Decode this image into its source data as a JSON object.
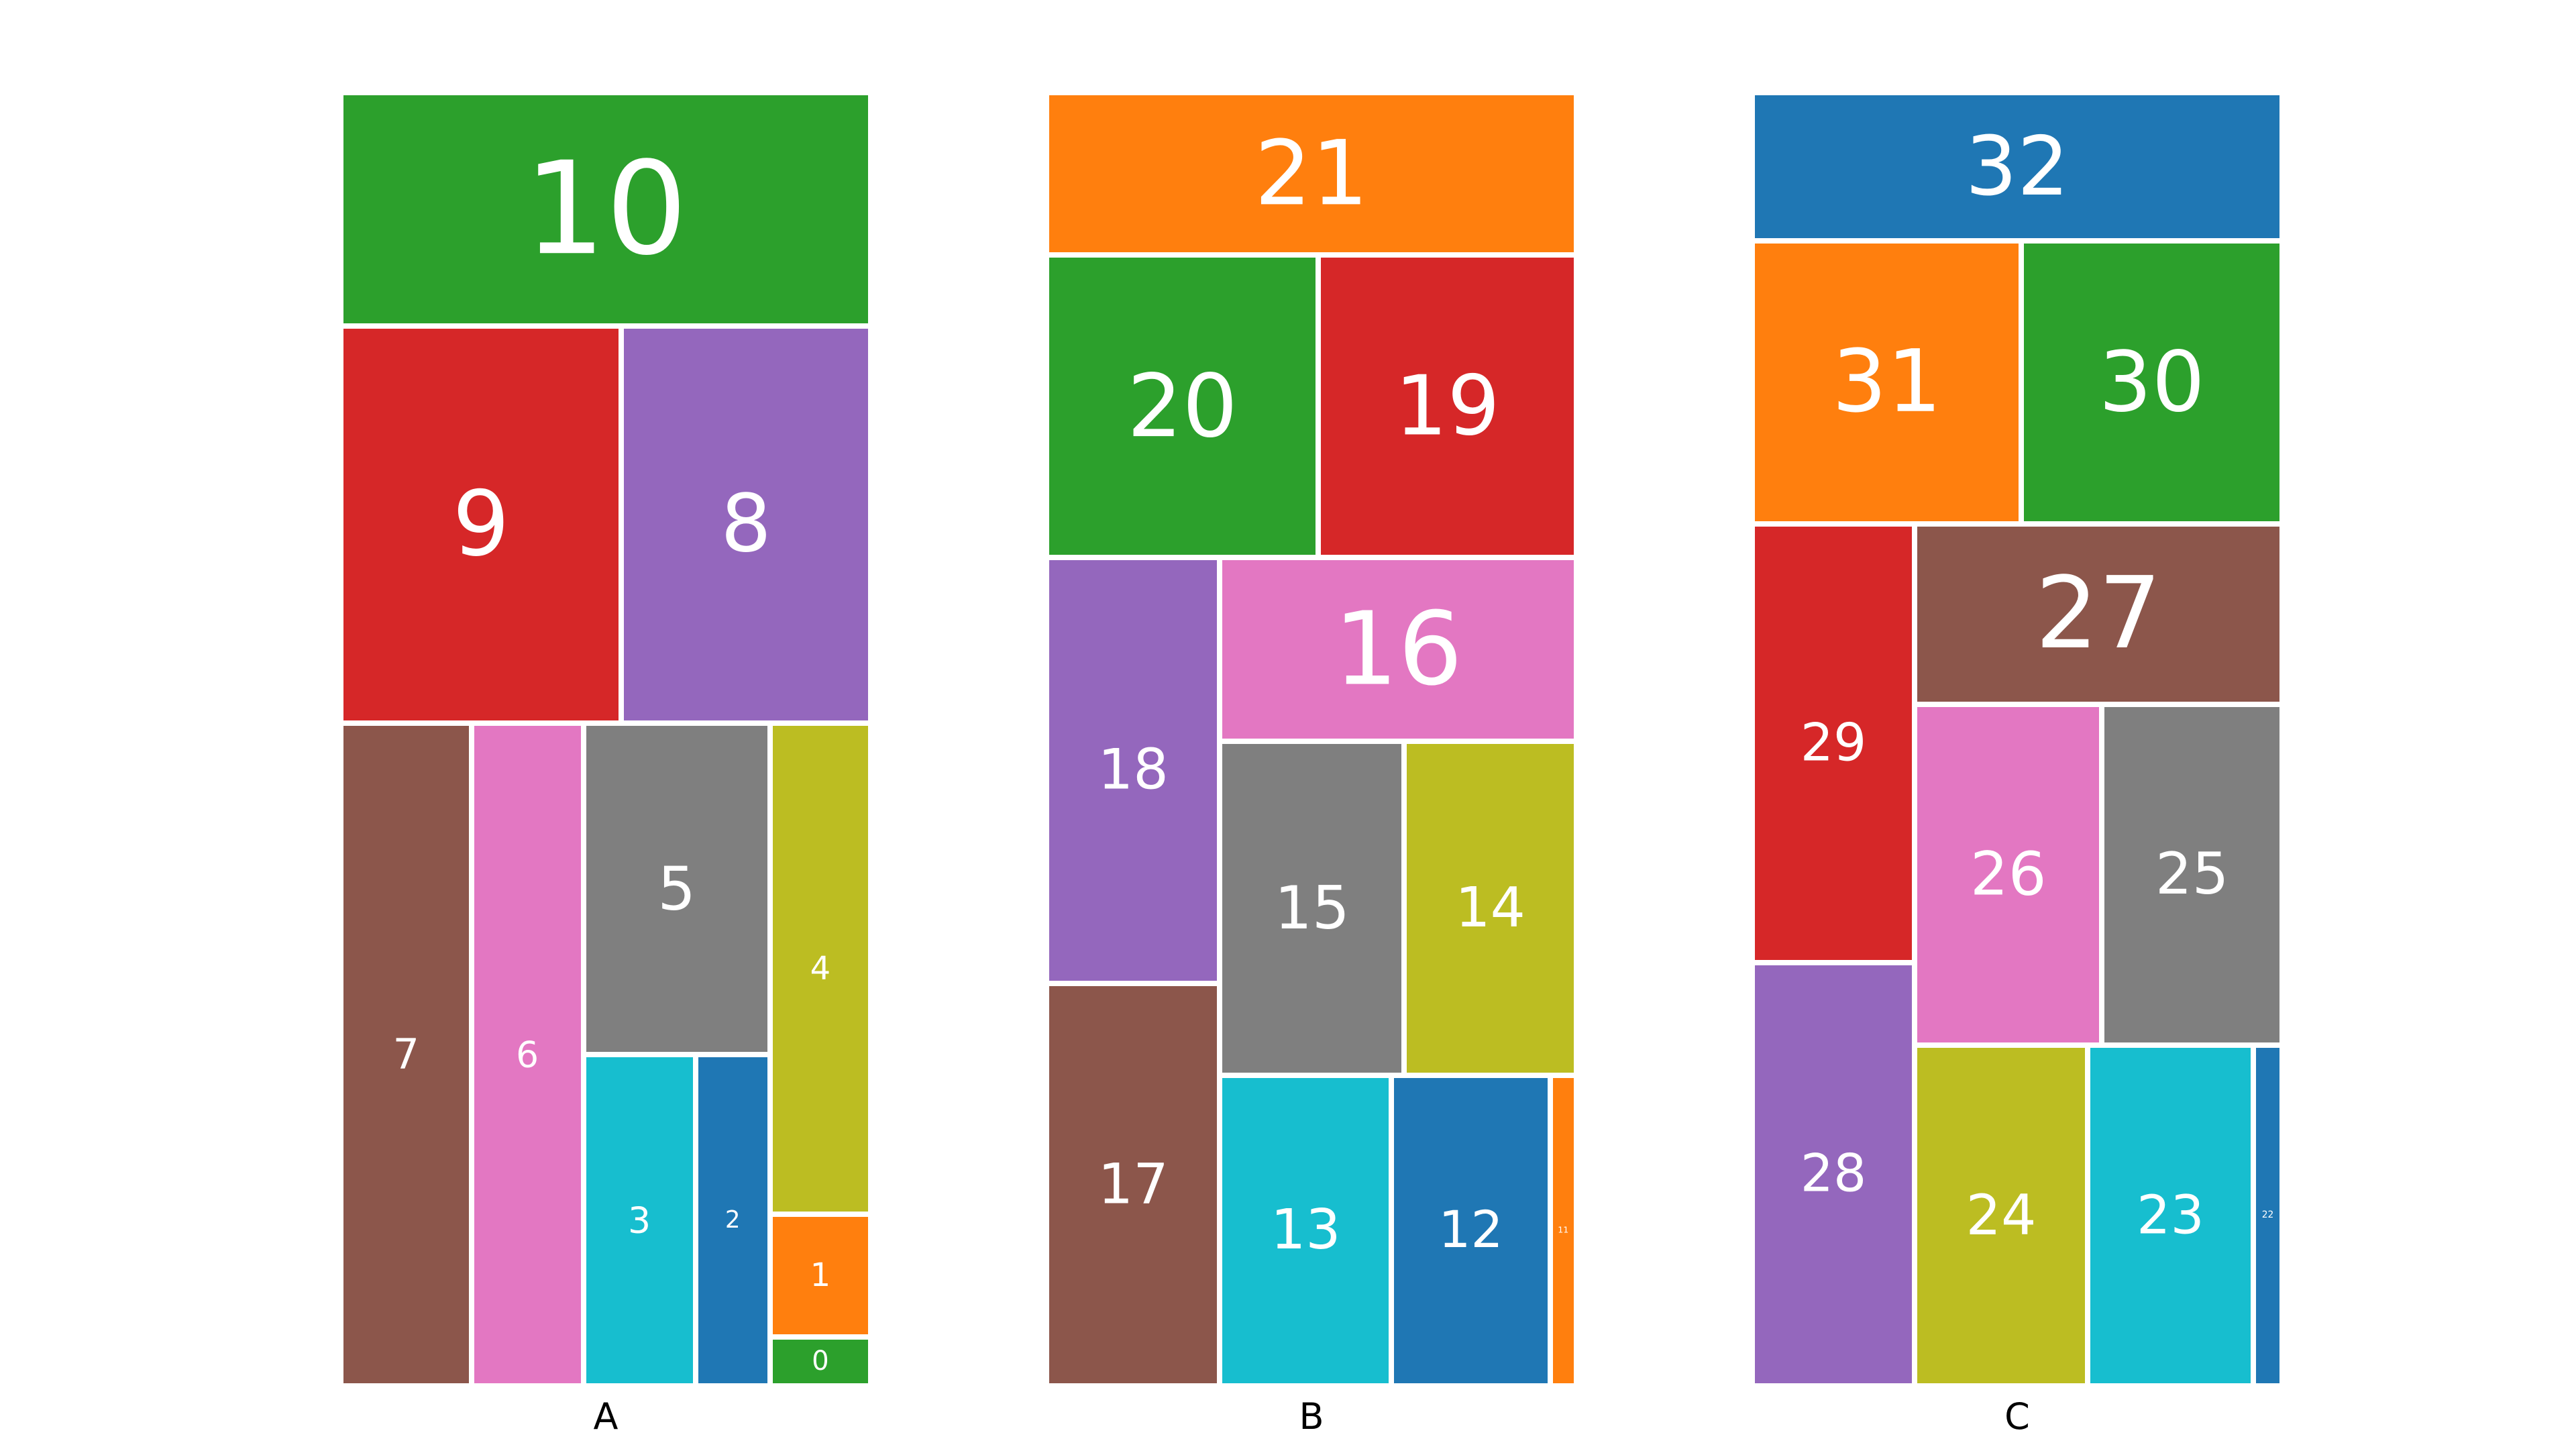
{
  "chart_data": [
    {
      "type": "treemap",
      "xlabel": "A",
      "palette": {
        "10": "#2ca02c",
        "9": "#d62728",
        "8": "#9467bd",
        "7": "#8c564b",
        "6": "#e377c2",
        "5": "#7f7f7f",
        "4": "#bcbd22",
        "3": "#17becf",
        "2": "#1f77b4",
        "1": "#ff7f0e",
        "0": "#2ca02c"
      },
      "tiles": [
        {
          "label": "10",
          "value": 10
        },
        {
          "label": "9",
          "value": 9
        },
        {
          "label": "8",
          "value": 8
        },
        {
          "label": "7",
          "value": 7
        },
        {
          "label": "6",
          "value": 6
        },
        {
          "label": "5",
          "value": 5
        },
        {
          "label": "4",
          "value": 4
        },
        {
          "label": "3",
          "value": 3
        },
        {
          "label": "2",
          "value": 2
        },
        {
          "label": "1",
          "value": 1
        },
        {
          "label": "0",
          "value": 0.4
        }
      ]
    },
    {
      "type": "treemap",
      "xlabel": "B",
      "palette": {
        "21": "#ff7f0e",
        "20": "#2ca02c",
        "19": "#d62728",
        "18": "#9467bd",
        "17": "#8c564b",
        "16": "#e377c2",
        "15": "#7f7f7f",
        "14": "#bcbd22",
        "13": "#17becf",
        "12": "#1f77b4",
        "11": "#ff7f0e"
      },
      "tiles": [
        {
          "label": "21",
          "value": 21
        },
        {
          "label": "20",
          "value": 20
        },
        {
          "label": "19",
          "value": 19
        },
        {
          "label": "18",
          "value": 18
        },
        {
          "label": "17",
          "value": 17
        },
        {
          "label": "16",
          "value": 16
        },
        {
          "label": "15",
          "value": 15
        },
        {
          "label": "14",
          "value": 14
        },
        {
          "label": "13",
          "value": 13
        },
        {
          "label": "12",
          "value": 12
        },
        {
          "label": "11",
          "value": 2
        }
      ]
    },
    {
      "type": "treemap",
      "xlabel": "C",
      "palette": {
        "32": "#1f77b4",
        "31": "#ff7f0e",
        "30": "#2ca02c",
        "29": "#d62728",
        "28": "#9467bd",
        "27": "#8c564b",
        "26": "#e377c2",
        "25": "#7f7f7f",
        "24": "#bcbd22",
        "23": "#17becf",
        "22": "#1f77b4"
      },
      "tiles": [
        {
          "label": "32",
          "value": 32
        },
        {
          "label": "31",
          "value": 31
        },
        {
          "label": "30",
          "value": 30
        },
        {
          "label": "29",
          "value": 29
        },
        {
          "label": "28",
          "value": 28
        },
        {
          "label": "27",
          "value": 27
        },
        {
          "label": "26",
          "value": 26
        },
        {
          "label": "25",
          "value": 25
        },
        {
          "label": "24",
          "value": 24
        },
        {
          "label": "23",
          "value": 23
        },
        {
          "label": "22",
          "value": 4
        }
      ]
    }
  ]
}
